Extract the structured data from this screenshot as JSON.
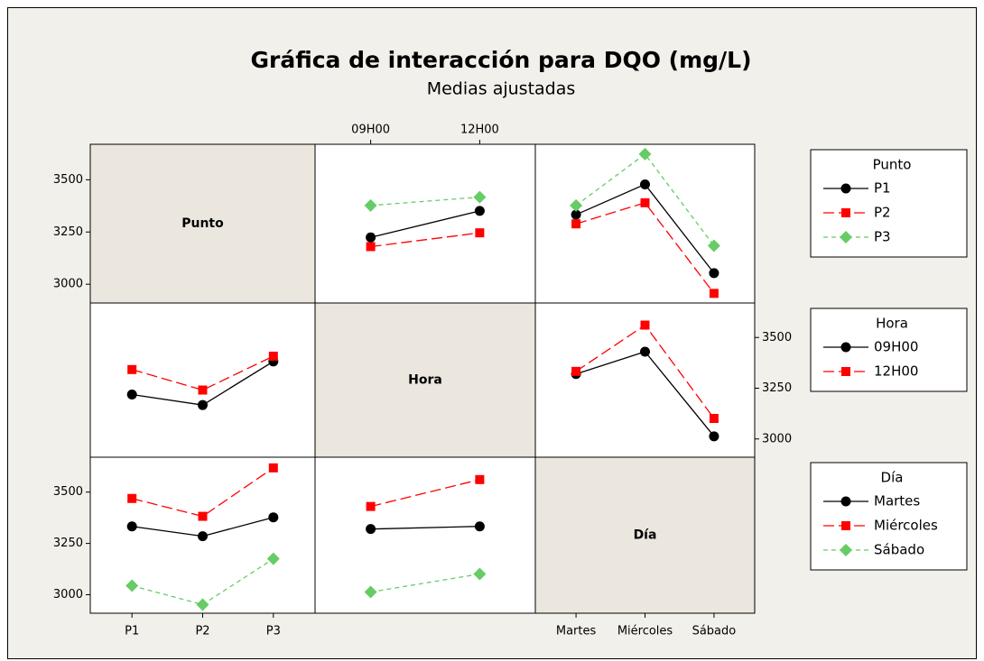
{
  "chart_data": {
    "type": "interaction",
    "title": "Gráfica de interacción para DQO (mg/L)",
    "subtitle": "Medias ajustadas",
    "ylim": [
      2910,
      3670
    ],
    "yticks": [
      3000,
      3250,
      3500
    ],
    "series_style": [
      {
        "color": "#000000",
        "marker": "circle",
        "dash": "solid"
      },
      {
        "color": "#ff0000",
        "marker": "square",
        "dash": "long"
      },
      {
        "color": "#66cc66",
        "marker": "diamond",
        "dash": "short"
      }
    ],
    "factors": [
      {
        "name": "Punto",
        "levels": [
          "P1",
          "P2",
          "P3"
        ]
      },
      {
        "name": "Hora",
        "levels": [
          "09H00",
          "12H00"
        ]
      },
      {
        "name": "Día",
        "levels": [
          "Martes",
          "Miércoles",
          "Sábado"
        ]
      }
    ],
    "panels": [
      {
        "trace": 0,
        "x": 1,
        "values": [
          [
            3224,
            3351
          ],
          [
            3180,
            3246
          ],
          [
            3377,
            3417
          ]
        ]
      },
      {
        "trace": 0,
        "x": 2,
        "values": [
          [
            3333,
            3478,
            3053
          ],
          [
            3289,
            3390,
            2956
          ],
          [
            3377,
            3623,
            3184
          ]
        ]
      },
      {
        "trace": 1,
        "x": 0,
        "values": [
          [
            3219,
            3167,
            3382
          ],
          [
            3342,
            3241,
            3408
          ]
        ]
      },
      {
        "trace": 1,
        "x": 2,
        "values": [
          [
            3320,
            3430,
            3013
          ],
          [
            3333,
            3561,
            3101
          ]
        ]
      },
      {
        "trace": 2,
        "x": 0,
        "values": [
          [
            3333,
            3285,
            3377
          ],
          [
            3469,
            3382,
            3618
          ],
          [
            3044,
            2952,
            3175
          ]
        ]
      },
      {
        "trace": 2,
        "x": 1,
        "values": [
          [
            3320,
            3333
          ],
          [
            3430,
            3561
          ],
          [
            3013,
            3101
          ]
        ]
      }
    ]
  }
}
